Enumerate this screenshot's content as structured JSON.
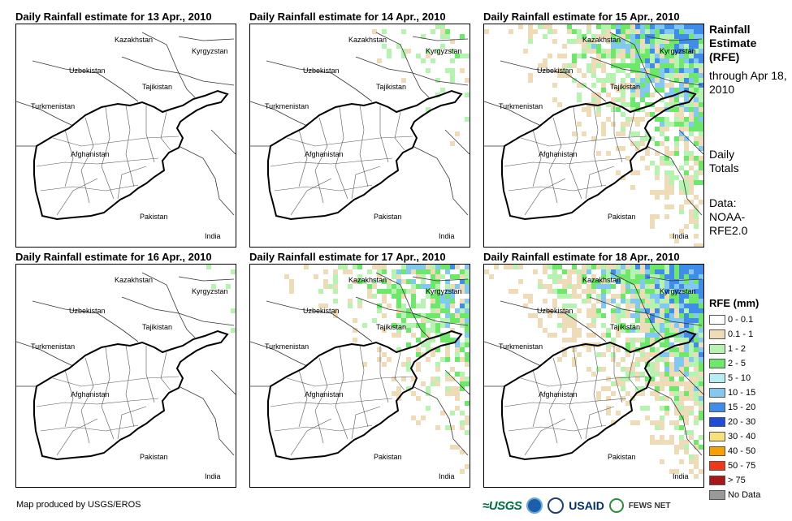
{
  "panels": [
    {
      "title": "Daily Rainfall estimate for 13 Apr., 2010",
      "intensity": 0.2
    },
    {
      "title": "Daily Rainfall estimate for 14 Apr., 2010",
      "intensity": 0.35
    },
    {
      "title": "Daily Rainfall estimate for 15 Apr., 2010",
      "intensity": 0.8
    },
    {
      "title": "Daily Rainfall estimate for 16 Apr., 2010",
      "intensity": 0.25
    },
    {
      "title": "Daily Rainfall estimate for 17 Apr., 2010",
      "intensity": 0.6
    },
    {
      "title": "Daily Rainfall estimate for 18 Apr., 2010",
      "intensity": 0.85
    }
  ],
  "map_labels": {
    "kazakhstan": "Kazakhstan",
    "kyrgyzstan": "Kyrgyzstan",
    "uzbekistan": "Uzbekistan",
    "tajikistan": "Tajikistan",
    "turkmenistan": "Turkmenistan",
    "afghanistan": "Afghanistan",
    "pakistan": "Pakistan",
    "india": "India"
  },
  "side_info": {
    "title": "Rainfall Estimate (RFE)",
    "through": "through Apr 18, 2010",
    "totals": "Daily Totals",
    "data_source": "Data: NOAA-RFE2.0"
  },
  "legend": {
    "title": "RFE (mm)",
    "items": [
      {
        "label": "0 - 0.1",
        "color": "#ffffff"
      },
      {
        "label": "0.1 - 1",
        "color": "#eedcb8"
      },
      {
        "label": "1 - 2",
        "color": "#b6f2b0"
      },
      {
        "label": "2 - 5",
        "color": "#6ee86b"
      },
      {
        "label": "5 - 10",
        "color": "#b6ecf4"
      },
      {
        "label": "10 - 15",
        "color": "#82c8f0"
      },
      {
        "label": "15 - 20",
        "color": "#3f8de8"
      },
      {
        "label": "20 - 30",
        "color": "#1f4cd8"
      },
      {
        "label": "30 - 40",
        "color": "#f8e07a"
      },
      {
        "label": "40 - 50",
        "color": "#f8a000"
      },
      {
        "label": "50 - 75",
        "color": "#f03818"
      },
      {
        "label": "> 75",
        "color": "#a81818"
      },
      {
        "label": "No Data",
        "color": "#999999"
      }
    ]
  },
  "credit": "Map produced by USGS/EROS",
  "logos": {
    "usgs": "≈USGS",
    "usaid": "USAID",
    "fews": "FEWS NET"
  }
}
